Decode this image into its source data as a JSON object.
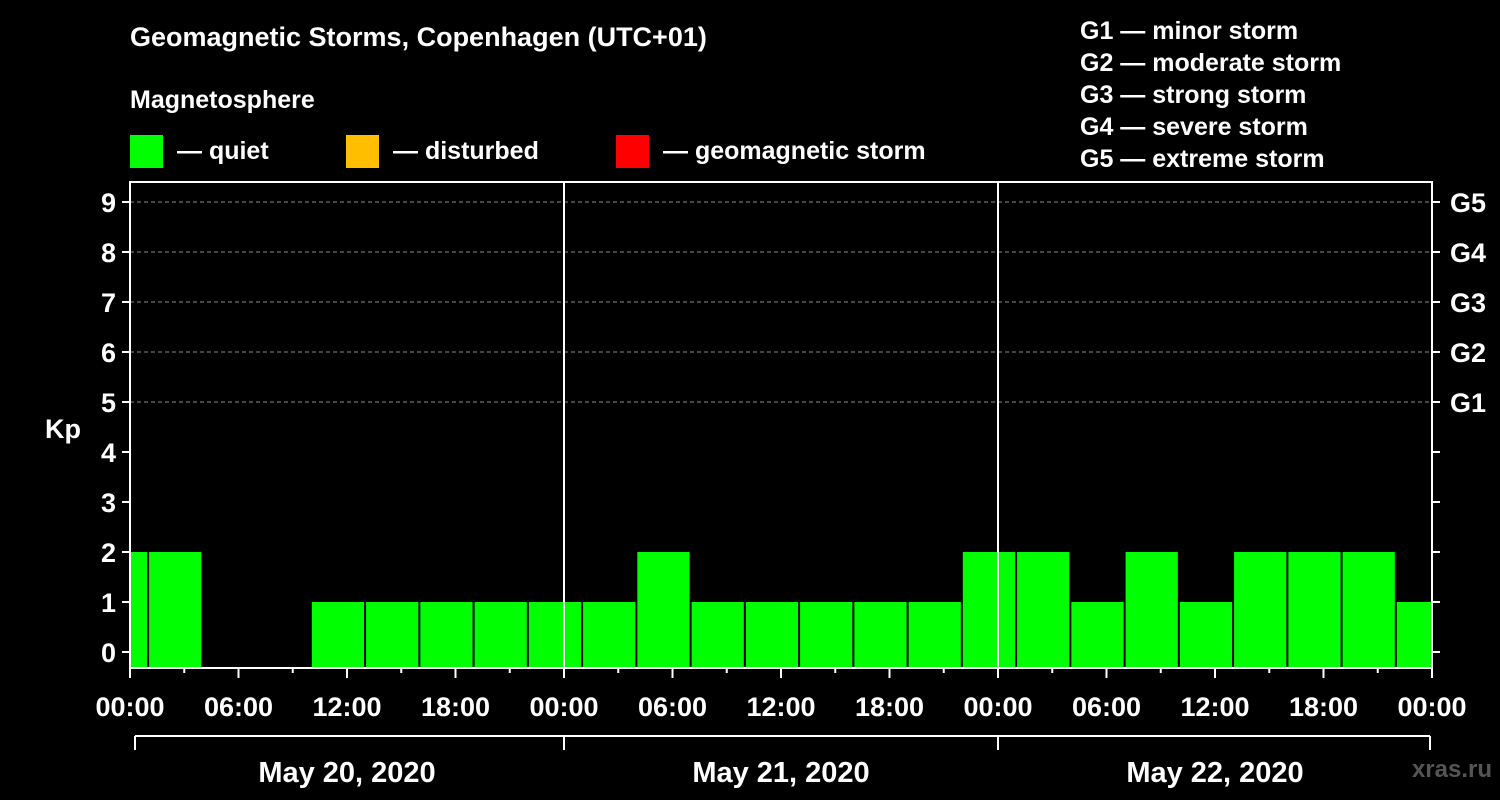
{
  "header": {
    "title": "Geomagnetic Storms, Copenhagen (UTC+01)",
    "subtitle": "Magnetosphere"
  },
  "legend": [
    {
      "color": "#00ff00",
      "label": "— quiet"
    },
    {
      "color": "#ffbf00",
      "label": "— disturbed"
    },
    {
      "color": "#ff0000",
      "label": "— geomagnetic storm"
    }
  ],
  "storm_scale": [
    "G1 — minor storm",
    "G2 — moderate storm",
    "G3 — strong storm",
    "G4 — severe storm",
    "G5 — extreme storm"
  ],
  "watermark": "xras.ru",
  "chart_data": {
    "type": "bar",
    "title": "Geomagnetic Storms, Copenhagen (UTC+01)",
    "ylabel": "Kp",
    "ylim": [
      0,
      9
    ],
    "yticks": [
      0,
      1,
      2,
      3,
      4,
      5,
      6,
      7,
      8,
      9
    ],
    "right_axis_labels": [
      {
        "kp": 5,
        "label": "G1"
      },
      {
        "kp": 6,
        "label": "G2"
      },
      {
        "kp": 7,
        "label": "G3"
      },
      {
        "kp": 8,
        "label": "G4"
      },
      {
        "kp": 9,
        "label": "G5"
      }
    ],
    "xlim_hours": [
      0,
      72
    ],
    "x_tick_labels": [
      "00:00",
      "06:00",
      "12:00",
      "18:00",
      "00:00",
      "06:00",
      "12:00",
      "18:00",
      "00:00",
      "06:00",
      "12:00",
      "18:00",
      "00:00"
    ],
    "dates": [
      "May 20, 2020",
      "May 21, 2020",
      "May 22, 2020"
    ],
    "bar_color": "#00ff00",
    "series": [
      {
        "name": "Kp",
        "bars": [
          {
            "start": 0,
            "end": 1,
            "value": 2
          },
          {
            "start": 1,
            "end": 4,
            "value": 2
          },
          {
            "start": 4,
            "end": 7,
            "value": 0
          },
          {
            "start": 7,
            "end": 10,
            "value": 0
          },
          {
            "start": 10,
            "end": 13,
            "value": 1
          },
          {
            "start": 13,
            "end": 16,
            "value": 1
          },
          {
            "start": 16,
            "end": 19,
            "value": 1
          },
          {
            "start": 19,
            "end": 22,
            "value": 1
          },
          {
            "start": 22,
            "end": 25,
            "value": 1
          },
          {
            "start": 25,
            "end": 28,
            "value": 1
          },
          {
            "start": 28,
            "end": 31,
            "value": 2
          },
          {
            "start": 31,
            "end": 34,
            "value": 1
          },
          {
            "start": 34,
            "end": 37,
            "value": 1
          },
          {
            "start": 37,
            "end": 40,
            "value": 1
          },
          {
            "start": 40,
            "end": 43,
            "value": 1
          },
          {
            "start": 43,
            "end": 46,
            "value": 1
          },
          {
            "start": 46,
            "end": 49,
            "value": 2
          },
          {
            "start": 49,
            "end": 52,
            "value": 2
          },
          {
            "start": 52,
            "end": 55,
            "value": 1
          },
          {
            "start": 55,
            "end": 58,
            "value": 2
          },
          {
            "start": 58,
            "end": 61,
            "value": 1
          },
          {
            "start": 61,
            "end": 64,
            "value": 2
          },
          {
            "start": 64,
            "end": 67,
            "value": 2
          },
          {
            "start": 67,
            "end": 70,
            "value": 2
          },
          {
            "start": 70,
            "end": 72,
            "value": 1
          }
        ]
      }
    ]
  }
}
